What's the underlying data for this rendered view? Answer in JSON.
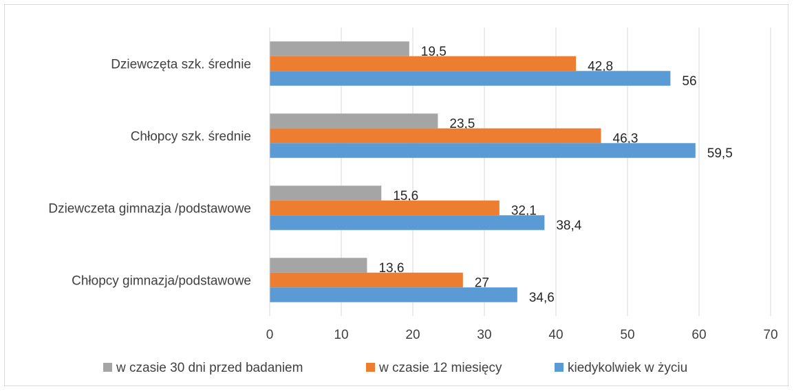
{
  "chart_data": {
    "type": "bar",
    "orientation": "horizontal",
    "categories": [
      "Dziewczęta szk. średnie",
      "Chłopcy szk. średnie",
      "Dziewczeta gimnazja /podstawowe",
      "Chłopcy gimnazja/podstawowe"
    ],
    "series": [
      {
        "name": "w czasie 30 dni przed badaniem",
        "color": "#a5a5a5",
        "values": [
          19.5,
          23.5,
          15.6,
          13.6
        ],
        "labels": [
          "19,5",
          "23,5",
          "15,6",
          "13,6"
        ]
      },
      {
        "name": "w czasie 12 miesięcy",
        "color": "#ed7d31",
        "values": [
          42.8,
          46.3,
          32.1,
          27
        ],
        "labels": [
          "42,8",
          "46,3",
          "32,1",
          "27"
        ]
      },
      {
        "name": "kiedykolwiek w życiu",
        "color": "#5b9bd5",
        "values": [
          56,
          59.5,
          38.4,
          34.6
        ],
        "labels": [
          "56",
          "59,5",
          "38,4",
          "34,6"
        ]
      }
    ],
    "xlim": [
      0,
      70
    ],
    "ticks": [
      "0",
      "10",
      "20",
      "30",
      "40",
      "50",
      "60",
      "70"
    ],
    "grid": true,
    "legend_position": "bottom"
  }
}
